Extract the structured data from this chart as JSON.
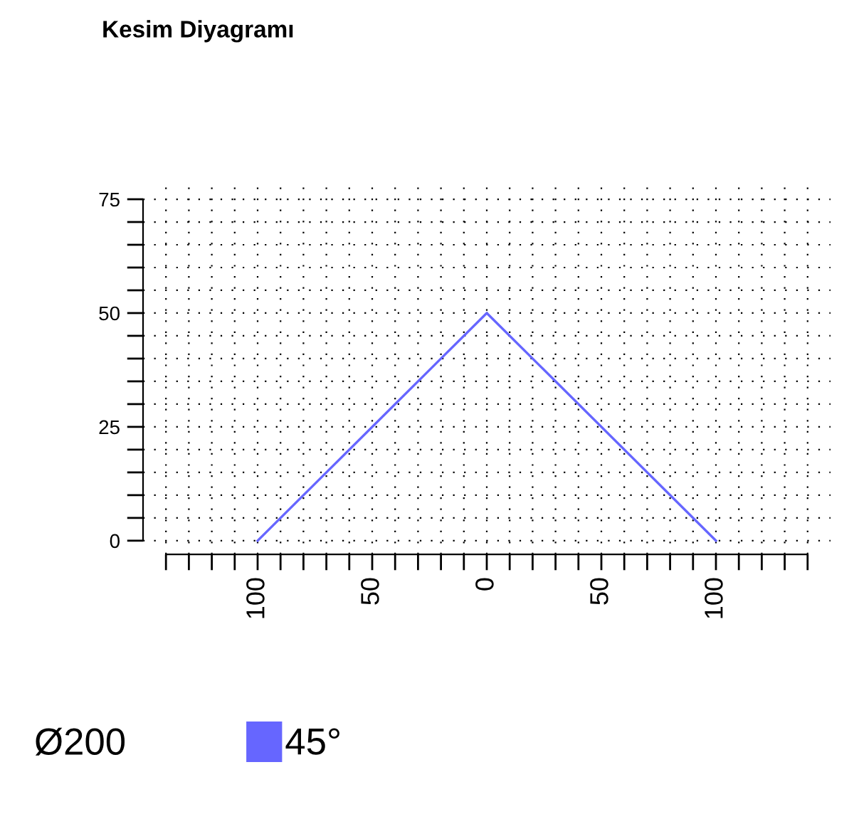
{
  "chart_data": {
    "type": "line",
    "title": "Kesim Diyagramı",
    "x": [
      -100,
      0,
      100
    ],
    "series": [
      {
        "name": "45°",
        "color": "#6666ff",
        "values": [
          0,
          50,
          0
        ]
      }
    ],
    "xlim": [
      -150,
      150
    ],
    "ylim": [
      -3,
      78
    ],
    "xticks": [
      {
        "value": -140,
        "label": null
      },
      {
        "value": -130,
        "label": null
      },
      {
        "value": -120,
        "label": null
      },
      {
        "value": -110,
        "label": null
      },
      {
        "value": -100,
        "label": "100"
      },
      {
        "value": -90,
        "label": null
      },
      {
        "value": -80,
        "label": null
      },
      {
        "value": -70,
        "label": null
      },
      {
        "value": -60,
        "label": null
      },
      {
        "value": -50,
        "label": "50"
      },
      {
        "value": -40,
        "label": null
      },
      {
        "value": -30,
        "label": null
      },
      {
        "value": -20,
        "label": null
      },
      {
        "value": -10,
        "label": null
      },
      0,
      {
        "value": 10,
        "label": null
      },
      {
        "value": 20,
        "label": null
      },
      {
        "value": 30,
        "label": null
      },
      {
        "value": 40,
        "label": null
      },
      {
        "value": 50,
        "label": "50"
      },
      {
        "value": 60,
        "label": null
      },
      {
        "value": 70,
        "label": null
      },
      {
        "value": 80,
        "label": null
      },
      {
        "value": 90,
        "label": null
      },
      {
        "value": 100,
        "label": "100"
      },
      {
        "value": 110,
        "label": null
      },
      {
        "value": 120,
        "label": null
      },
      {
        "value": 130,
        "label": null
      },
      {
        "value": 140,
        "label": null
      }
    ],
    "yticks": [
      0,
      {
        "value": 5,
        "label": null
      },
      {
        "value": 10,
        "label": null
      },
      {
        "value": 15,
        "label": null
      },
      {
        "value": 20,
        "label": null
      },
      25,
      {
        "value": 30,
        "label": null
      },
      {
        "value": 35,
        "label": null
      },
      {
        "value": 40,
        "label": null
      },
      {
        "value": 45,
        "label": null
      },
      50,
      {
        "value": 55,
        "label": null
      },
      {
        "value": 60,
        "label": null
      },
      {
        "value": 65,
        "label": null
      },
      {
        "value": 70,
        "label": null
      },
      75
    ],
    "grid": true,
    "legend": "bottom",
    "marker": "none",
    "line_style": "solid",
    "annotations": [
      "Ø200"
    ]
  }
}
